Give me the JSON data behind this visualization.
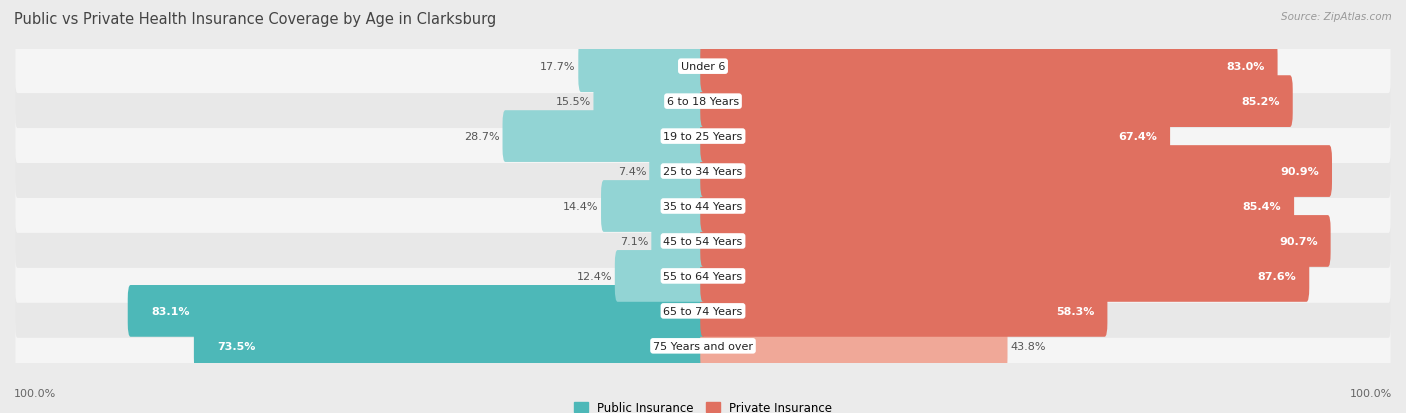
{
  "title": "Public vs Private Health Insurance Coverage by Age in Clarksburg",
  "source": "Source: ZipAtlas.com",
  "categories": [
    "Under 6",
    "6 to 18 Years",
    "19 to 25 Years",
    "25 to 34 Years",
    "35 to 44 Years",
    "45 to 54 Years",
    "55 to 64 Years",
    "65 to 74 Years",
    "75 Years and over"
  ],
  "public_values": [
    17.7,
    15.5,
    28.7,
    7.4,
    14.4,
    7.1,
    12.4,
    83.1,
    73.5
  ],
  "private_values": [
    83.0,
    85.2,
    67.4,
    90.9,
    85.4,
    90.7,
    87.6,
    58.3,
    43.8
  ],
  "public_color_solid": "#4db8b8",
  "public_color_light": "#92d4d4",
  "private_color_solid": "#e07060",
  "private_color_light": "#f0a898",
  "background_color": "#ebebeb",
  "row_bg_even": "#f5f5f5",
  "row_bg_odd": "#e8e8e8",
  "title_fontsize": 10.5,
  "label_fontsize": 8,
  "value_fontsize": 8,
  "legend_fontsize": 8.5,
  "source_fontsize": 7.5,
  "xlim": 100,
  "threshold": 50
}
